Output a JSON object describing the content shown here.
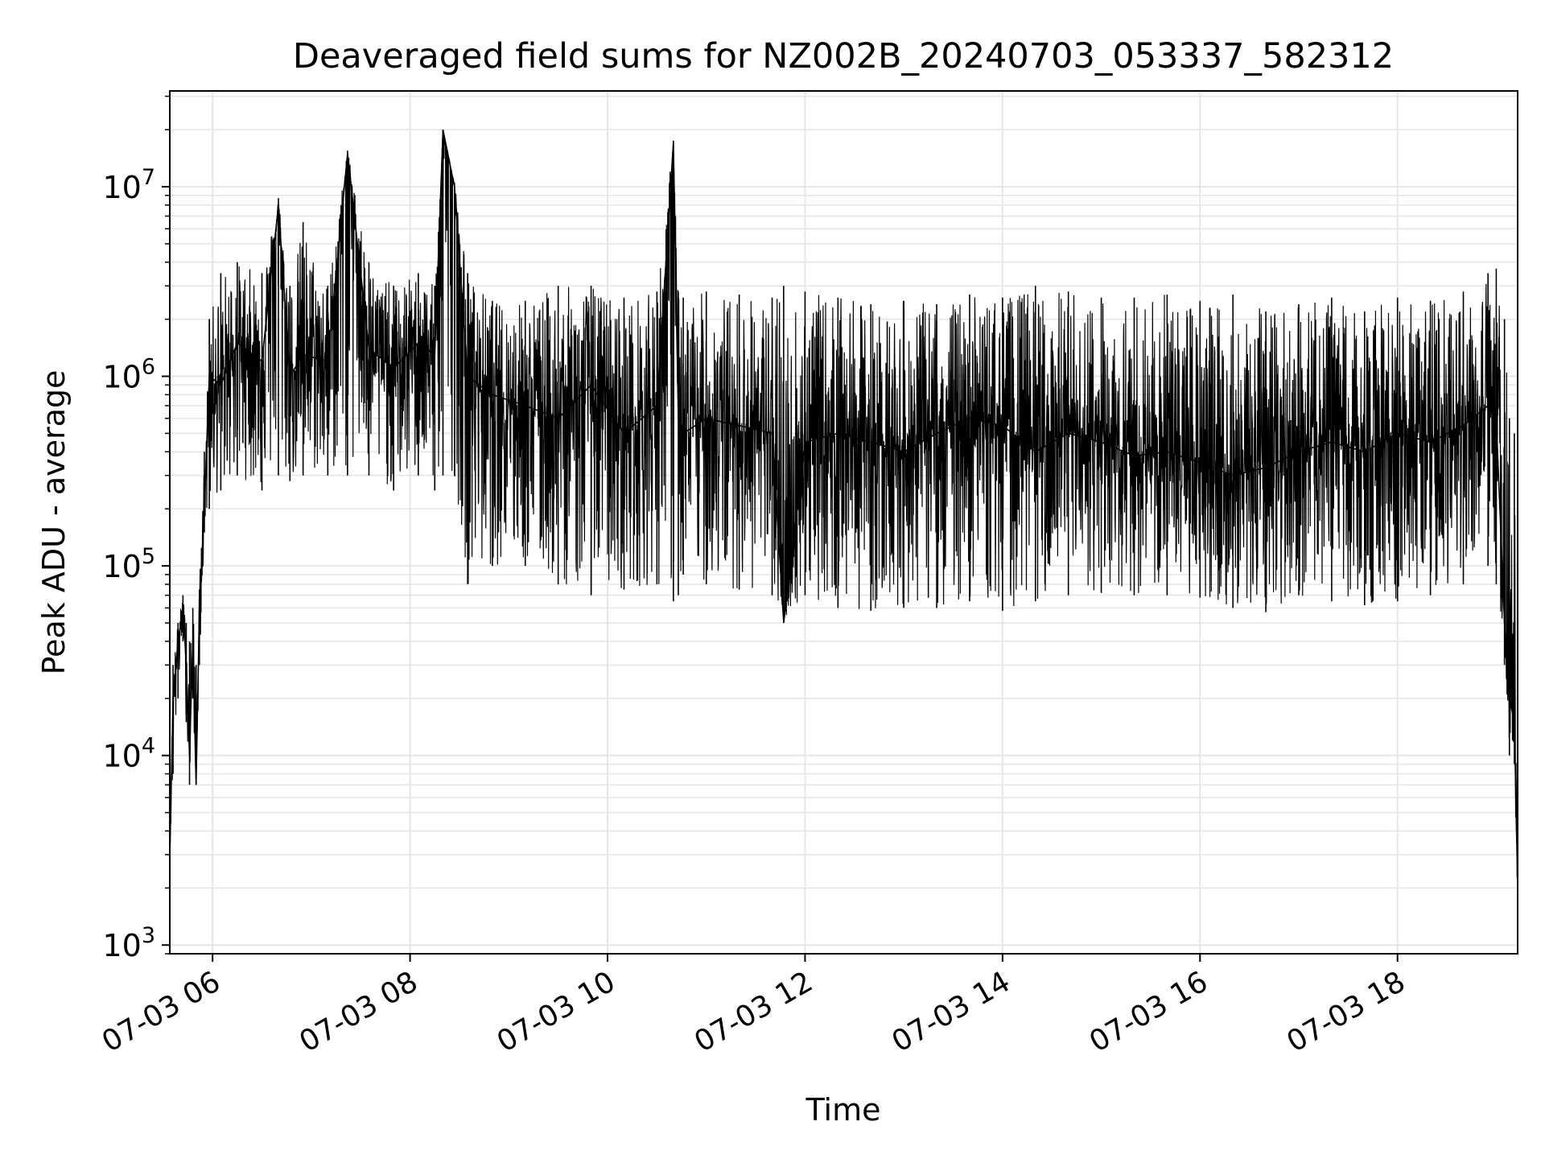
{
  "chart_data": {
    "type": "line",
    "title": "Deaveraged field sums for NZ002B_20240703_053337_582312",
    "xlabel": "Time",
    "ylabel": "Peak ADU - average",
    "yscale": "log",
    "grid": true,
    "line_color": "#000000",
    "grid_color": "#e6e6e6",
    "xlim": [
      "2024-07-03 05:34",
      "2024-07-03 19:13"
    ],
    "ylim": [
      900,
      32000000
    ],
    "x_ticks": [
      {
        "value": "2024-07-03 06:00",
        "label": "07-03 06"
      },
      {
        "value": "2024-07-03 08:00",
        "label": "07-03 08"
      },
      {
        "value": "2024-07-03 10:00",
        "label": "07-03 10"
      },
      {
        "value": "2024-07-03 12:00",
        "label": "07-03 12"
      },
      {
        "value": "2024-07-03 14:00",
        "label": "07-03 14"
      },
      {
        "value": "2024-07-03 16:00",
        "label": "07-03 16"
      },
      {
        "value": "2024-07-03 18:00",
        "label": "07-03 18"
      }
    ],
    "y_ticks": [
      {
        "value": 1000,
        "base": "10",
        "exp": "3"
      },
      {
        "value": 10000,
        "base": "10",
        "exp": "4"
      },
      {
        "value": 100000,
        "base": "10",
        "exp": "5"
      },
      {
        "value": 1000000,
        "base": "10",
        "exp": "6"
      },
      {
        "value": 10000000,
        "base": "10",
        "exp": "7"
      }
    ],
    "series": [
      {
        "x": [
          "2024-07-03 05:34",
          "2024-07-03 05:36",
          "2024-07-03 05:39",
          "2024-07-03 05:42",
          "2024-07-03 05:44",
          "2024-07-03 05:46",
          "2024-07-03 05:48",
          "2024-07-03 05:50",
          "2024-07-03 05:52",
          "2024-07-03 05:55",
          "2024-07-03 05:58",
          "2024-07-03 06:05",
          "2024-07-03 06:15",
          "2024-07-03 06:30",
          "2024-07-03 06:40",
          "2024-07-03 06:47",
          "2024-07-03 06:55",
          "2024-07-03 07:10",
          "2024-07-03 07:22",
          "2024-07-03 07:35",
          "2024-07-03 07:50",
          "2024-07-03 08:05",
          "2024-07-03 08:15",
          "2024-07-03 08:20",
          "2024-07-03 08:27",
          "2024-07-03 08:35",
          "2024-07-03 08:50",
          "2024-07-03 09:10",
          "2024-07-03 09:30",
          "2024-07-03 09:50",
          "2024-07-03 10:10",
          "2024-07-03 10:30",
          "2024-07-03 10:40",
          "2024-07-03 10:43",
          "2024-07-03 10:46",
          "2024-07-03 11:00",
          "2024-07-03 11:20",
          "2024-07-03 11:40",
          "2024-07-03 11:47",
          "2024-07-03 12:00",
          "2024-07-03 12:20",
          "2024-07-03 12:40",
          "2024-07-03 13:00",
          "2024-07-03 13:20",
          "2024-07-03 13:40",
          "2024-07-03 14:00",
          "2024-07-03 14:20",
          "2024-07-03 14:40",
          "2024-07-03 15:00",
          "2024-07-03 15:20",
          "2024-07-03 15:40",
          "2024-07-03 16:00",
          "2024-07-03 16:20",
          "2024-07-03 16:40",
          "2024-07-03 17:00",
          "2024-07-03 17:20",
          "2024-07-03 17:40",
          "2024-07-03 18:00",
          "2024-07-03 18:20",
          "2024-07-03 18:40",
          "2024-07-03 18:55",
          "2024-07-03 19:00",
          "2024-07-03 19:05",
          "2024-07-03 19:08",
          "2024-07-03 19:11",
          "2024-07-03 19:13"
        ],
        "y": [
          3000,
          20000,
          40000,
          60000,
          30000,
          10000,
          40000,
          7000,
          60000,
          200000,
          1000000,
          900000,
          1500000,
          1200000,
          8000000,
          1000000,
          1300000,
          1200000,
          15000000,
          1400000,
          1100000,
          1500000,
          1300000,
          20000000,
          10000000,
          1000000,
          800000,
          700000,
          600000,
          900000,
          500000,
          700000,
          17000000,
          600000,
          500000,
          600000,
          550000,
          500000,
          50000,
          450000,
          500000,
          450000,
          400000,
          500000,
          600000,
          550000,
          400000,
          500000,
          450000,
          380000,
          400000,
          350000,
          300000,
          330000,
          400000,
          450000,
          400000,
          500000,
          450000,
          550000,
          700000,
          600000,
          50000,
          20000,
          15000,
          2000
        ],
        "min": [
          2800,
          8000,
          20000,
          40000,
          15000,
          7000,
          20000,
          7000,
          30000,
          150000,
          200000,
          250000,
          300000,
          250000,
          300000,
          280000,
          300000,
          300000,
          300000,
          300000,
          250000,
          300000,
          250000,
          300000,
          300000,
          80000,
          100000,
          100000,
          80000,
          70000,
          75000,
          80000,
          65000,
          70000,
          90000,
          80000,
          75000,
          70000,
          52000,
          70000,
          60000,
          58000,
          60000,
          60000,
          65000,
          58000,
          65000,
          70000,
          72000,
          70000,
          70000,
          68000,
          60000,
          57000,
          70000,
          65000,
          62000,
          65000,
          70000,
          80000,
          100000,
          80000,
          30000,
          10000,
          9000,
          1500
        ],
        "max": [
          3000,
          30000,
          50000,
          70000,
          50000,
          40000,
          60000,
          30000,
          75000,
          400000,
          2000000,
          3500000,
          4000000,
          3500000,
          8700000,
          3000000,
          6500000,
          3000000,
          15500000,
          4000000,
          3000000,
          3500000,
          3000000,
          20000000,
          10500000,
          3500000,
          2500000,
          2500000,
          3000000,
          3000000,
          2600000,
          2800000,
          17500000,
          2800000,
          2600000,
          2800000,
          2700000,
          2600000,
          3000000,
          2800000,
          2600000,
          2400000,
          2500000,
          2400000,
          2700000,
          2600000,
          3000000,
          2800000,
          2600000,
          2600000,
          2700000,
          2500000,
          2700000,
          2200000,
          2400000,
          2600000,
          2200000,
          2600000,
          2500000,
          2800000,
          3500000,
          3700000,
          2000000,
          600000,
          500000,
          3000
        ]
      }
    ]
  }
}
